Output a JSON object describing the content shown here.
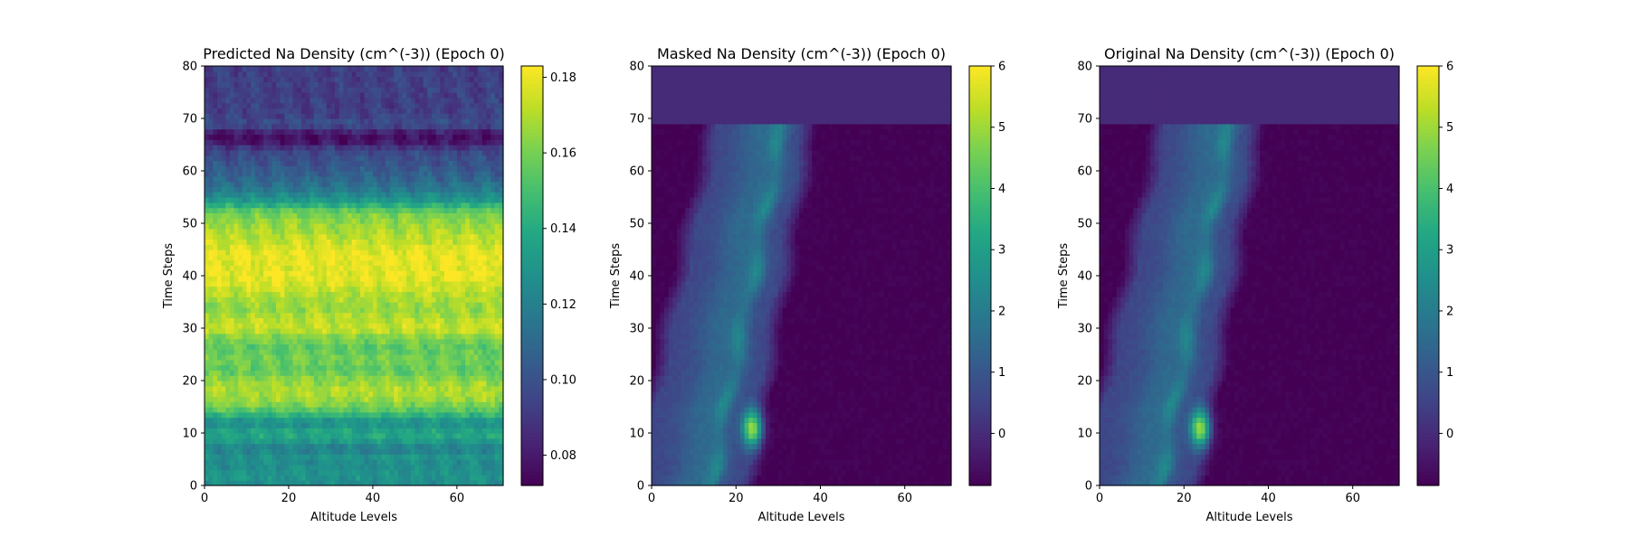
{
  "chart_data": [
    {
      "type": "heatmap",
      "title": "Predicted Na Density (cm^(-3)) (Epoch 0)",
      "xlabel": "Altitude Levels",
      "ylabel": "Time Steps",
      "xlim": [
        0,
        71
      ],
      "ylim": [
        0,
        80
      ],
      "xticks": [
        "0",
        "20",
        "40",
        "60"
      ],
      "yticks": [
        "0",
        "10",
        "20",
        "30",
        "40",
        "50",
        "60",
        "70",
        "80"
      ],
      "colormap": "viridis",
      "colorbar": {
        "range": [
          0.072,
          0.183
        ],
        "ticks": [
          "0.08",
          "0.10",
          "0.12",
          "0.14",
          "0.16",
          "0.18"
        ]
      },
      "pattern": "horizontal bands",
      "band_profile": [
        {
          "time": 0,
          "value": 0.125
        },
        {
          "time": 2,
          "value": 0.13
        },
        {
          "time": 4,
          "value": 0.125
        },
        {
          "time": 6,
          "value": 0.13
        },
        {
          "time": 7,
          "value": 0.115
        },
        {
          "time": 8,
          "value": 0.13
        },
        {
          "time": 10,
          "value": 0.14
        },
        {
          "time": 12,
          "value": 0.125
        },
        {
          "time": 14,
          "value": 0.15
        },
        {
          "time": 16,
          "value": 0.165
        },
        {
          "time": 18,
          "value": 0.17
        },
        {
          "time": 20,
          "value": 0.165
        },
        {
          "time": 22,
          "value": 0.155
        },
        {
          "time": 24,
          "value": 0.16
        },
        {
          "time": 26,
          "value": 0.155
        },
        {
          "time": 28,
          "value": 0.16
        },
        {
          "time": 30,
          "value": 0.175
        },
        {
          "time": 32,
          "value": 0.17
        },
        {
          "time": 34,
          "value": 0.165
        },
        {
          "time": 36,
          "value": 0.17
        },
        {
          "time": 38,
          "value": 0.175
        },
        {
          "time": 40,
          "value": 0.18
        },
        {
          "time": 42,
          "value": 0.178
        },
        {
          "time": 44,
          "value": 0.18
        },
        {
          "time": 46,
          "value": 0.175
        },
        {
          "time": 48,
          "value": 0.17
        },
        {
          "time": 50,
          "value": 0.165
        },
        {
          "time": 52,
          "value": 0.16
        },
        {
          "time": 53,
          "value": 0.15
        },
        {
          "time": 54,
          "value": 0.135
        },
        {
          "time": 56,
          "value": 0.12
        },
        {
          "time": 58,
          "value": 0.11
        },
        {
          "time": 60,
          "value": 0.105
        },
        {
          "time": 62,
          "value": 0.1
        },
        {
          "time": 64,
          "value": 0.095
        },
        {
          "time": 65,
          "value": 0.085
        },
        {
          "time": 66,
          "value": 0.075
        },
        {
          "time": 67,
          "value": 0.078
        },
        {
          "time": 68,
          "value": 0.088
        },
        {
          "time": 69,
          "value": 0.1
        },
        {
          "time": 70,
          "value": 0.095
        },
        {
          "time": 72,
          "value": 0.093
        },
        {
          "time": 80,
          "value": 0.093
        }
      ]
    },
    {
      "type": "heatmap",
      "title": "Masked Na Density (cm^(-3)) (Epoch 0)",
      "xlabel": "Altitude Levels",
      "ylabel": "Time Steps",
      "xlim": [
        0,
        71
      ],
      "ylim": [
        0,
        80
      ],
      "xticks": [
        "0",
        "20",
        "40",
        "60"
      ],
      "yticks": [
        "0",
        "10",
        "20",
        "30",
        "40",
        "50",
        "60",
        "70",
        "80"
      ],
      "colormap": "viridis",
      "colorbar": {
        "range": [
          -0.85,
          6
        ],
        "ticks": [
          "0",
          "1",
          "2",
          "3",
          "4",
          "5",
          "6"
        ]
      },
      "masked_rows": [
        69,
        80
      ],
      "masked_value": 0,
      "background_value": -0.85,
      "peak": {
        "altitude": 24,
        "time": 11,
        "value": 6
      }
    },
    {
      "type": "heatmap",
      "title": "Original Na Density (cm^(-3)) (Epoch 0)",
      "xlabel": "Altitude Levels",
      "ylabel": "Time Steps",
      "xlim": [
        0,
        71
      ],
      "ylim": [
        0,
        80
      ],
      "xticks": [
        "0",
        "20",
        "40",
        "60"
      ],
      "yticks": [
        "0",
        "10",
        "20",
        "30",
        "40",
        "50",
        "60",
        "70",
        "80"
      ],
      "colormap": "viridis",
      "colorbar": {
        "range": [
          -0.85,
          6
        ],
        "ticks": [
          "0",
          "1",
          "2",
          "3",
          "4",
          "5",
          "6"
        ]
      },
      "masked_rows": [
        69,
        80
      ],
      "masked_value": 0,
      "background_value": -0.85,
      "peak": {
        "altitude": 24,
        "time": 11,
        "value": 6
      }
    }
  ]
}
